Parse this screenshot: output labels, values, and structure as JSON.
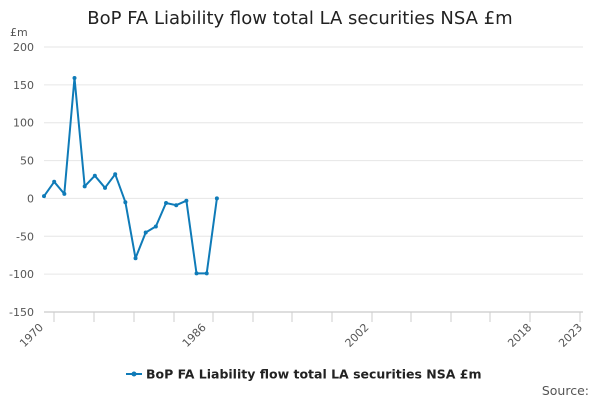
{
  "chart_data": {
    "type": "line",
    "title": "BoP FA Liability flow total LA securities NSA £m",
    "unit_label": "£m",
    "ylim": [
      -150,
      200
    ],
    "yticks": [
      -150,
      -100,
      -50,
      0,
      50,
      100,
      150,
      200
    ],
    "xlim": [
      1970,
      2023
    ],
    "xtick_labels": [
      "1970",
      "1986",
      "2002",
      "2018",
      "2023"
    ],
    "grid": true,
    "legend_position": "bottom",
    "series": [
      {
        "name": "BoP FA Liability flow total LA securities NSA £m",
        "color": "#0f7bb8",
        "x": [
          1970,
          1971,
          1972,
          1973,
          1974,
          1975,
          1976,
          1977,
          1978,
          1979,
          1980,
          1981,
          1982,
          1983,
          1984,
          1985,
          1986,
          1987
        ],
        "y": [
          3,
          22,
          6,
          159,
          16,
          30,
          14,
          32,
          -5,
          -79,
          -45,
          -37,
          -6,
          -9,
          -3,
          -99,
          -99,
          0
        ]
      }
    ],
    "source_label": "Source:"
  }
}
